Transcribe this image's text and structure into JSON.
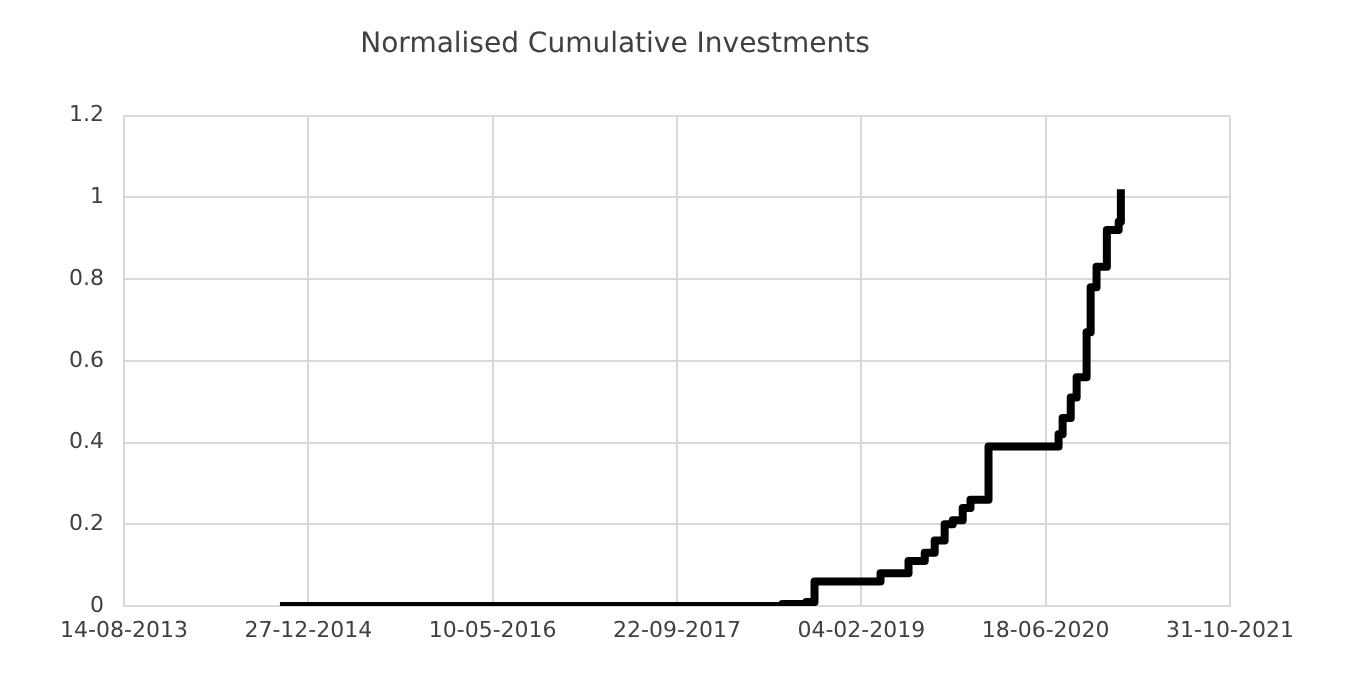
{
  "chart_data": {
    "type": "step",
    "title": "Normalised Cumulative Investments",
    "x": [
      "2014-10-11",
      "2018-07-05",
      "2018-09-08",
      "2018-09-30",
      "2019-03-28",
      "2019-06-12",
      "2019-07-26",
      "2019-08-22",
      "2019-09-18",
      "2019-10-10",
      "2019-11-06",
      "2019-11-27",
      "2020-01-15",
      "2020-07-23",
      "2020-08-03",
      "2020-08-25",
      "2020-09-10",
      "2020-10-07",
      "2020-10-18",
      "2020-11-03",
      "2020-12-01",
      "2021-01-02",
      "2021-01-08"
    ],
    "series": [
      {
        "color": "#000000",
        "values": [
          0,
          0.005,
          0.01,
          0.06,
          0.08,
          0.11,
          0.13,
          0.16,
          0.2,
          0.21,
          0.24,
          0.26,
          0.39,
          0.42,
          0.46,
          0.51,
          0.56,
          0.67,
          0.78,
          0.83,
          0.92,
          0.94,
          1.02
        ]
      }
    ],
    "xlim": [
      "2013-08-14",
      "2021-10-31"
    ],
    "xticks": [
      {
        "value": "2013-08-14",
        "label": "14-08-2013"
      },
      {
        "value": "2014-12-27",
        "label": "27-12-2014"
      },
      {
        "value": "2016-05-10",
        "label": "10-05-2016"
      },
      {
        "value": "2017-09-22",
        "label": "22-09-2017"
      },
      {
        "value": "2019-02-04",
        "label": "04-02-2019"
      },
      {
        "value": "2020-06-18",
        "label": "18-06-2020"
      },
      {
        "value": "2021-10-31",
        "label": "31-10-2021"
      }
    ],
    "ylim": [
      0,
      1.2
    ],
    "yticks": [
      0,
      0.2,
      0.4,
      0.6,
      0.8,
      1,
      1.2
    ],
    "grid": true,
    "legend": false,
    "marker": "none",
    "line_style": "solid"
  }
}
